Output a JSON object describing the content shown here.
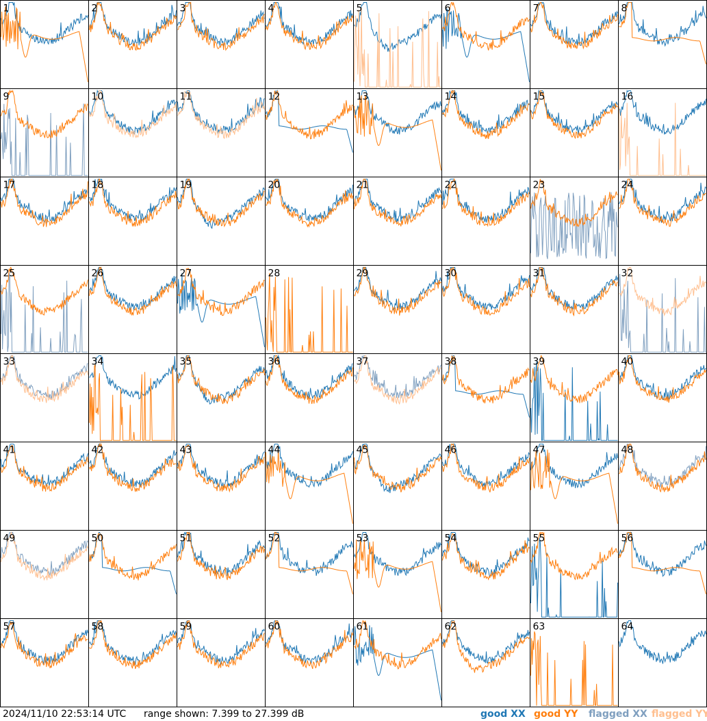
{
  "chart_data": {
    "type": "line",
    "title": "",
    "layout": "8x8 grid of small panels",
    "grid": false,
    "legend_placement": "bottom-right",
    "timestamp": "2024/11/10 22:53:14 UTC",
    "range_text": "range shown: 7.399 to 27.399 dB",
    "ylim": [
      7.399,
      27.399
    ],
    "yunit": "dB",
    "legend": [
      {
        "label": "good XX",
        "color": "#1f77b4"
      },
      {
        "label": "good YY",
        "color": "#ff7f0e"
      },
      {
        "label": "flagged XX",
        "color": "#7f9fbf"
      },
      {
        "label": "flagged YY",
        "color": "#ffbf8f"
      }
    ],
    "panels": [
      {
        "id": "1",
        "xx": "good",
        "yy": "bad_droop"
      },
      {
        "id": "2",
        "xx": "good",
        "yy": "good"
      },
      {
        "id": "3",
        "xx": "good",
        "yy": "good"
      },
      {
        "id": "4",
        "xx": "good",
        "yy": "good"
      },
      {
        "id": "5",
        "xx": "good_dip",
        "yy": "flagged_spikes"
      },
      {
        "id": "6",
        "xx": "bad_droop",
        "yy": "good"
      },
      {
        "id": "7",
        "xx": "good",
        "yy": "good"
      },
      {
        "id": "8",
        "xx": "good",
        "yy": "flat"
      },
      {
        "id": "9",
        "xx": "flagged_spikes",
        "yy": "good"
      },
      {
        "id": "10",
        "xx": "good",
        "yy": "flagged_normal"
      },
      {
        "id": "11",
        "xx": "good",
        "yy": "flagged_normal"
      },
      {
        "id": "12",
        "xx": "flat",
        "yy": "good"
      },
      {
        "id": "13",
        "xx": "good",
        "yy": "bad_droop"
      },
      {
        "id": "14",
        "xx": "good",
        "yy": "good"
      },
      {
        "id": "15",
        "xx": "good",
        "yy": "good"
      },
      {
        "id": "16",
        "xx": "good",
        "yy": "flagged_spikes"
      },
      {
        "id": "17",
        "xx": "good",
        "yy": "good"
      },
      {
        "id": "18",
        "xx": "good",
        "yy": "good"
      },
      {
        "id": "19",
        "xx": "good_dip",
        "yy": "good"
      },
      {
        "id": "20",
        "xx": "good",
        "yy": "good"
      },
      {
        "id": "21",
        "xx": "good",
        "yy": "good"
      },
      {
        "id": "22",
        "xx": "good",
        "yy": "good"
      },
      {
        "id": "23",
        "xx": "flagged_noisy",
        "yy": "good"
      },
      {
        "id": "24",
        "xx": "good",
        "yy": "good"
      },
      {
        "id": "25",
        "xx": "flagged_spikes",
        "yy": "good"
      },
      {
        "id": "26",
        "xx": "good",
        "yy": "good"
      },
      {
        "id": "27",
        "xx": "bad_droop",
        "yy": "good"
      },
      {
        "id": "28",
        "xx": "none",
        "yy": "spikes"
      },
      {
        "id": "29",
        "xx": "good",
        "yy": "good"
      },
      {
        "id": "30",
        "xx": "good",
        "yy": "good"
      },
      {
        "id": "31",
        "xx": "good",
        "yy": "good"
      },
      {
        "id": "32",
        "xx": "flagged_spikes",
        "yy": "flagged_normal"
      },
      {
        "id": "33",
        "xx": "flagged_normal",
        "yy": "flagged_normal"
      },
      {
        "id": "34",
        "xx": "good",
        "yy": "spikes"
      },
      {
        "id": "35",
        "xx": "good_dip",
        "yy": "good"
      },
      {
        "id": "36",
        "xx": "good",
        "yy": "good"
      },
      {
        "id": "37",
        "xx": "flagged_normal",
        "yy": "flagged_normal"
      },
      {
        "id": "38",
        "xx": "flat",
        "yy": "good"
      },
      {
        "id": "39",
        "xx": "spikes",
        "yy": "good"
      },
      {
        "id": "40",
        "xx": "good",
        "yy": "good"
      },
      {
        "id": "41",
        "xx": "good",
        "yy": "good"
      },
      {
        "id": "42",
        "xx": "good",
        "yy": "good"
      },
      {
        "id": "43",
        "xx": "good",
        "yy": "good"
      },
      {
        "id": "44",
        "xx": "good",
        "yy": "bad_droop"
      },
      {
        "id": "45",
        "xx": "good_dip",
        "yy": "good"
      },
      {
        "id": "46",
        "xx": "good",
        "yy": "good"
      },
      {
        "id": "47",
        "xx": "good",
        "yy": "bad_droop"
      },
      {
        "id": "48",
        "xx": "flagged_normal",
        "yy": "good"
      },
      {
        "id": "49",
        "xx": "flagged_normal",
        "yy": "flagged_normal"
      },
      {
        "id": "50",
        "xx": "flat",
        "yy": "good"
      },
      {
        "id": "51",
        "xx": "good",
        "yy": "good"
      },
      {
        "id": "52",
        "xx": "good",
        "yy": "flat"
      },
      {
        "id": "53",
        "xx": "good",
        "yy": "bad_droop"
      },
      {
        "id": "54",
        "xx": "good",
        "yy": "good"
      },
      {
        "id": "55",
        "xx": "spikes",
        "yy": "good"
      },
      {
        "id": "56",
        "xx": "good",
        "yy": "flat"
      },
      {
        "id": "57",
        "xx": "good",
        "yy": "good"
      },
      {
        "id": "58",
        "xx": "good",
        "yy": "good"
      },
      {
        "id": "59",
        "xx": "good",
        "yy": "good"
      },
      {
        "id": "60",
        "xx": "good",
        "yy": "good"
      },
      {
        "id": "61",
        "xx": "bad_droop",
        "yy": "good"
      },
      {
        "id": "62",
        "xx": "good",
        "yy": "good_dip"
      },
      {
        "id": "63",
        "xx": "none",
        "yy": "spikes"
      },
      {
        "id": "64",
        "xx": "good",
        "yy": "none"
      }
    ]
  }
}
